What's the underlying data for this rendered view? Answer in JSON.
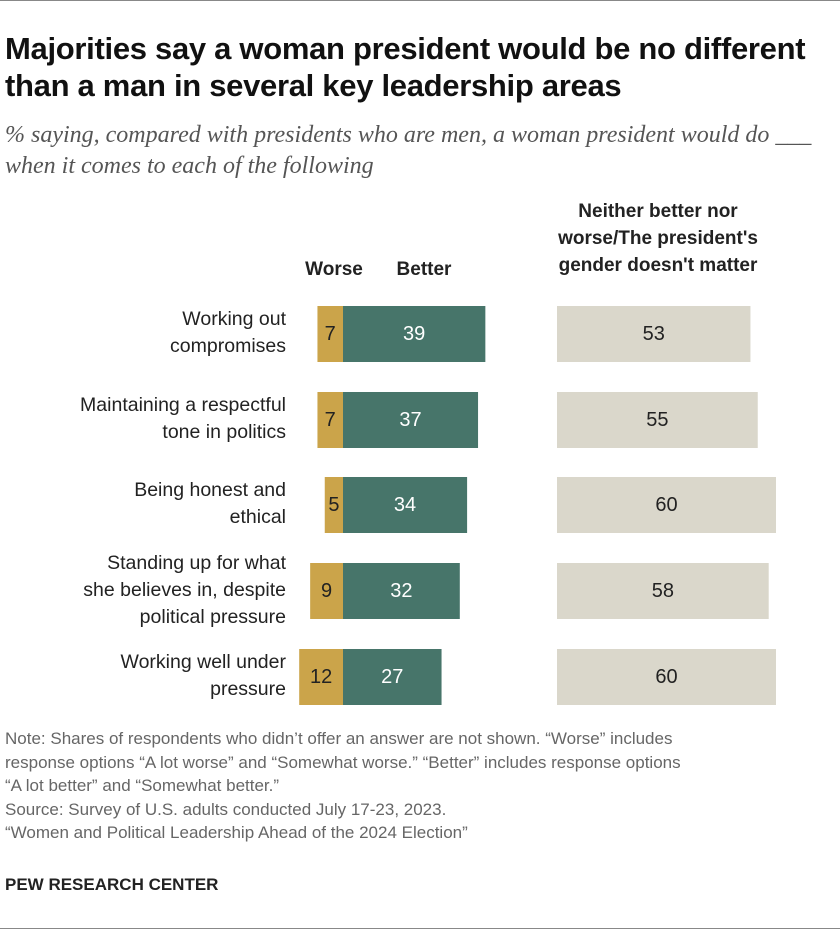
{
  "title": "Majorities say a woman president would be no different than a man in several key leadership areas",
  "subtitle": "% saying, compared with presidents who are men, a woman president would do ___ when it comes to each of the following",
  "chart_data": {
    "type": "bar",
    "orientation": "horizontal",
    "stacked_diverging": true,
    "categories": [
      "Working out compromises",
      "Maintaining a respectful tone in politics",
      "Being honest and ethical",
      "Standing up for what she believes in, despite political pressure",
      "Working well under pressure"
    ],
    "series": [
      {
        "name": "Worse",
        "color": "#CBA44A",
        "values": [
          7,
          7,
          5,
          9,
          12
        ]
      },
      {
        "name": "Better",
        "color": "#47756A",
        "values": [
          39,
          37,
          34,
          32,
          27
        ]
      },
      {
        "name": "Neither better nor worse/The president's gender doesn't matter",
        "color": "#DAD7CB",
        "values": [
          53,
          55,
          60,
          58,
          60
        ]
      }
    ],
    "data_labels": true,
    "grid": false
  },
  "headers": {
    "worse": "Worse",
    "better": "Better",
    "neither": [
      "Neither better nor",
      "worse/The president's",
      "gender doesn't matter"
    ]
  },
  "row_labels": [
    [
      "Working out",
      "compromises"
    ],
    [
      "Maintaining a respectful",
      "tone in politics"
    ],
    [
      "Being honest and",
      "ethical"
    ],
    [
      "Standing up for what",
      "she believes in, despite",
      "political pressure"
    ],
    [
      "Working well under",
      "pressure"
    ]
  ],
  "note": [
    "Note: Shares of respondents who didn’t offer an answer are not shown. “Worse” includes",
    "response options “A lot worse” and “Somewhat worse.” “Better” includes response options",
    "“A lot better” and “Somewhat better.”",
    "Source: Survey of U.S. adults conducted July 17-23, 2023.",
    "“Women and Political Leadership Ahead of the 2024 Election”"
  ],
  "brand": "PEW RESEARCH CENTER"
}
